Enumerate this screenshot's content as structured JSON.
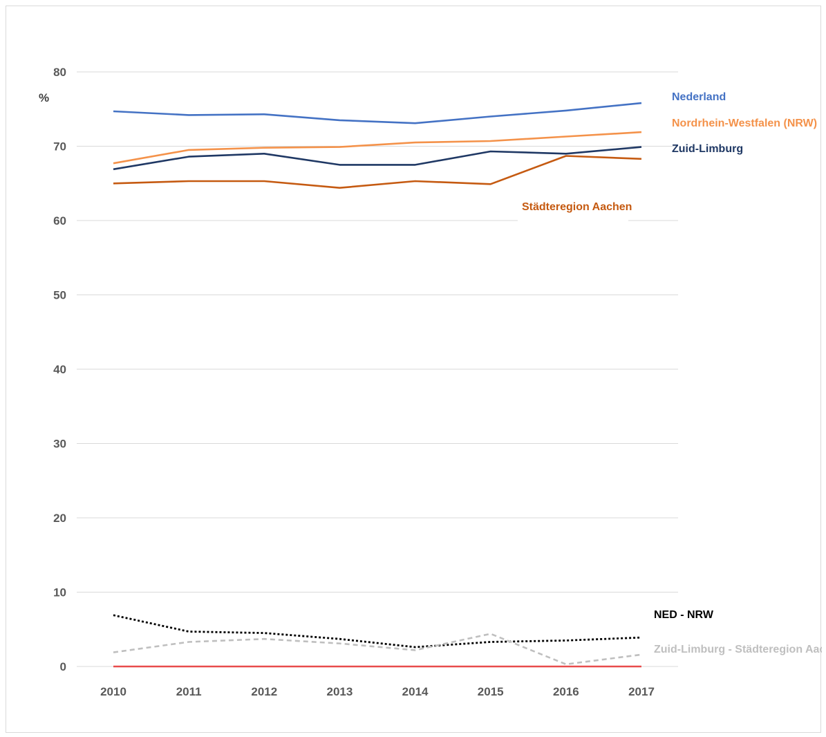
{
  "chart_data": {
    "type": "line",
    "ylabel": "%",
    "ylim": [
      0,
      80
    ],
    "yticks": [
      0,
      10,
      20,
      30,
      40,
      50,
      60,
      70,
      80
    ],
    "categories": [
      "2010",
      "2011",
      "2012",
      "2013",
      "2014",
      "2015",
      "2016",
      "2017"
    ],
    "grid": true,
    "series": [
      {
        "name": "Nederland",
        "color": "#4472c4",
        "dash": "solid",
        "values": [
          74.7,
          74.2,
          74.3,
          73.5,
          73.1,
          74.0,
          74.8,
          75.8
        ]
      },
      {
        "name": "Nordrhein-Westfalen (NRW)",
        "color": "#f4924a",
        "dash": "solid",
        "values": [
          67.7,
          69.5,
          69.8,
          69.9,
          70.5,
          70.7,
          71.3,
          71.9
        ]
      },
      {
        "name": "Zuid-Limburg",
        "color": "#1f3864",
        "dash": "solid",
        "values": [
          66.9,
          68.6,
          69.0,
          67.5,
          67.5,
          69.3,
          69.0,
          69.9
        ]
      },
      {
        "name": "Städteregion Aachen",
        "color": "#c55a11",
        "dash": "solid",
        "values": [
          65.0,
          65.3,
          65.3,
          64.4,
          65.3,
          64.9,
          68.7,
          68.3
        ]
      },
      {
        "name": "NED - NRW",
        "color": "#000000",
        "dash": "dotted",
        "values": [
          6.9,
          4.7,
          4.5,
          3.7,
          2.6,
          3.3,
          3.5,
          3.9
        ]
      },
      {
        "name": "Zuid-Limburg - Städteregion Aachen",
        "color": "#bfbfbf",
        "dash": "dashed",
        "values": [
          1.9,
          3.3,
          3.7,
          3.1,
          2.2,
          4.4,
          0.3,
          1.6
        ]
      },
      {
        "name": "",
        "color": "#e84c4c",
        "dash": "solid",
        "values": [
          0,
          0,
          0,
          0,
          0,
          0,
          0,
          0
        ]
      }
    ]
  }
}
